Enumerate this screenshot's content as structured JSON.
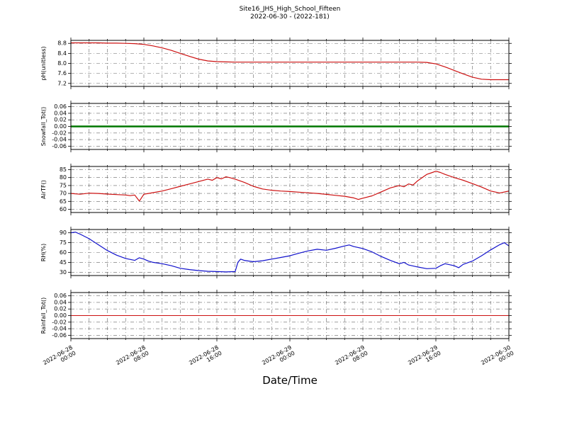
{
  "chart_data": {
    "type": "line",
    "title": "Site16_JHS_High_School_Fifteen",
    "subtitle": "2022-06-30 - (2022-181)",
    "xlabel": "Date/Time",
    "x_axis": "hours since 2022-06-28 00:00",
    "xlim": [
      0,
      48
    ],
    "x_major_ticks": [
      0,
      8,
      16,
      24,
      32,
      40,
      48
    ],
    "x_minor_step": 2,
    "grid": true,
    "x_tick_labels": [
      {
        "date": "2022-06-28",
        "time": "00:00"
      },
      {
        "date": "2022-06-28",
        "time": "08:00"
      },
      {
        "date": "2022-06-28",
        "time": "16:00"
      },
      {
        "date": "2022-06-29",
        "time": "00:00"
      },
      {
        "date": "2022-06-29",
        "time": "08:00"
      },
      {
        "date": "2022-06-29",
        "time": "16:00"
      },
      {
        "date": "2022-06-30",
        "time": "00:00"
      }
    ],
    "panels": [
      {
        "id": "ph",
        "ylabel": "pH(unitless)",
        "ylim": [
          7.08,
          8.92
        ],
        "yticks": [
          8.8,
          8.4,
          8.0,
          7.6,
          7.2
        ],
        "ytick_labels": [
          "8.8",
          "8.4",
          "8.0",
          "7.6",
          "7.2"
        ],
        "series": [
          {
            "name": "pH",
            "color": "#cc1111",
            "width": 1.2,
            "x": [
              0,
              1,
              2,
              3,
              4,
              5,
              6,
              7,
              8,
              9,
              10,
              11,
              12,
              13,
              14,
              15,
              16,
              17,
              18,
              19,
              20,
              21,
              22,
              23,
              24,
              25,
              26,
              27,
              28,
              29,
              30,
              31,
              32,
              33,
              34,
              35,
              36,
              37,
              38,
              39,
              40,
              41,
              42,
              43,
              44,
              45,
              46,
              47,
              48
            ],
            "y": [
              8.82,
              8.82,
              8.82,
              8.82,
              8.81,
              8.81,
              8.8,
              8.79,
              8.76,
              8.7,
              8.62,
              8.52,
              8.4,
              8.28,
              8.17,
              8.1,
              8.07,
              8.06,
              8.05,
              8.05,
              8.05,
              8.05,
              8.05,
              8.05,
              8.05,
              8.05,
              8.05,
              8.05,
              8.05,
              8.05,
              8.05,
              8.05,
              8.05,
              8.05,
              8.05,
              8.05,
              8.05,
              8.05,
              8.05,
              8.04,
              7.98,
              7.86,
              7.72,
              7.58,
              7.45,
              7.37,
              7.35,
              7.35,
              7.35
            ]
          }
        ]
      },
      {
        "id": "snowfall",
        "ylabel": "Snowfall_Tot()",
        "ylim": [
          -0.07,
          0.07
        ],
        "yticks": [
          0.06,
          0.04,
          0.02,
          0,
          -0.02,
          -0.04,
          -0.06
        ],
        "ytick_labels": [
          "0.06",
          "0.04",
          "0.02",
          "0.00",
          "-0.02",
          "-0.04",
          "-0.06"
        ],
        "series": [
          {
            "name": "Snowfall_Tot",
            "color": "#007700",
            "width": 2.6,
            "x": [
              0,
              48
            ],
            "y": [
              0,
              0
            ]
          }
        ]
      },
      {
        "id": "airtf",
        "ylabel": "AirTF()",
        "ylim": [
          58,
          87
        ],
        "yticks": [
          85,
          80,
          75,
          70,
          65,
          60
        ],
        "ytick_labels": [
          "85",
          "80",
          "75",
          "70",
          "65",
          "60"
        ],
        "series": [
          {
            "name": "AirTF",
            "color": "#cc1111",
            "width": 1.2,
            "x": [
              0,
              1,
              2,
              3,
              4,
              5,
              6,
              6.5,
              7,
              7.5,
              8,
              8.5,
              9,
              10,
              11,
              12,
              13,
              14,
              15,
              15.5,
              16,
              16.5,
              17,
              17.5,
              18,
              19,
              20,
              21,
              22,
              23,
              24,
              25,
              26,
              27,
              28,
              29,
              30,
              31,
              31.5,
              32,
              33,
              34,
              35,
              36,
              36.5,
              37,
              37.5,
              38,
              38.5,
              39,
              39.5,
              40,
              40.5,
              41,
              42,
              43,
              44,
              45,
              46,
              47,
              48
            ],
            "y": [
              70,
              69.5,
              70.2,
              70,
              69.6,
              69.3,
              69,
              68.6,
              69,
              65.2,
              69.5,
              70,
              70.5,
              71.5,
              73,
              74.5,
              76,
              77.5,
              79,
              78.3,
              80,
              79.2,
              80.5,
              79.8,
              79,
              77,
              74.5,
              72.8,
              72,
              71.5,
              71.2,
              70.8,
              70.4,
              70,
              69.4,
              68.8,
              68.2,
              67.2,
              66.2,
              67,
              68.5,
              71,
              73.5,
              75,
              74.2,
              76,
              75.3,
              78,
              80,
              82,
              83,
              84,
              83.2,
              82,
              80,
              78.3,
              76.2,
              74,
              71.5,
              70.3,
              71.5
            ]
          }
        ]
      },
      {
        "id": "rh",
        "ylabel": "RH(%)",
        "ylim": [
          25,
          95
        ],
        "yticks": [
          90,
          75,
          60,
          45,
          30
        ],
        "ytick_labels": [
          "90",
          "75",
          "60",
          "45",
          "30"
        ],
        "series": [
          {
            "name": "RH",
            "color": "#1111cc",
            "width": 1.2,
            "x": [
              0,
              0.5,
              1,
              2,
              3,
              4,
              5,
              6,
              7,
              7.5,
              8,
              8.5,
              9,
              10,
              11,
              12,
              13,
              14,
              15,
              16,
              17,
              18,
              18.3,
              18.6,
              19,
              20,
              21,
              22,
              23,
              24,
              25,
              26,
              27,
              28,
              29,
              30,
              30.5,
              31,
              32,
              33,
              34,
              35,
              36,
              36.5,
              37,
              38,
              39,
              40,
              40.5,
              41,
              42,
              42.5,
              43,
              44,
              45,
              46,
              47,
              47.5,
              48
            ],
            "y": [
              90,
              91,
              88,
              81,
              72,
              63,
              56,
              51,
              48,
              52,
              50,
              47,
              45,
              43,
              40,
              36,
              34,
              32.5,
              31.5,
              31,
              30.5,
              31,
              45,
              50,
              48,
              46,
              47.5,
              50,
              52.5,
              55,
              59,
              62.5,
              65,
              63.5,
              66.5,
              70,
              71.5,
              69,
              66,
              61,
              54,
              48,
              43,
              45,
              41,
              38,
              35.5,
              36,
              40,
              43,
              40,
              37,
              42,
              47,
              55,
              64,
              72,
              75,
              70
            ]
          }
        ]
      },
      {
        "id": "rainfall",
        "ylabel": "Rainfall_Tot()",
        "ylim": [
          -0.07,
          0.07
        ],
        "yticks": [
          0.06,
          0.04,
          0.02,
          0,
          -0.02,
          -0.04,
          -0.06
        ],
        "ytick_labels": [
          "0.06",
          "0.04",
          "0.02",
          "0.00",
          "-0.02",
          "-0.04",
          "-0.06"
        ],
        "series": [
          {
            "name": "Rainfall_Tot",
            "color": "#cc1111",
            "width": 1,
            "x": [
              0,
              48
            ],
            "y": [
              0,
              0
            ]
          }
        ]
      }
    ]
  }
}
